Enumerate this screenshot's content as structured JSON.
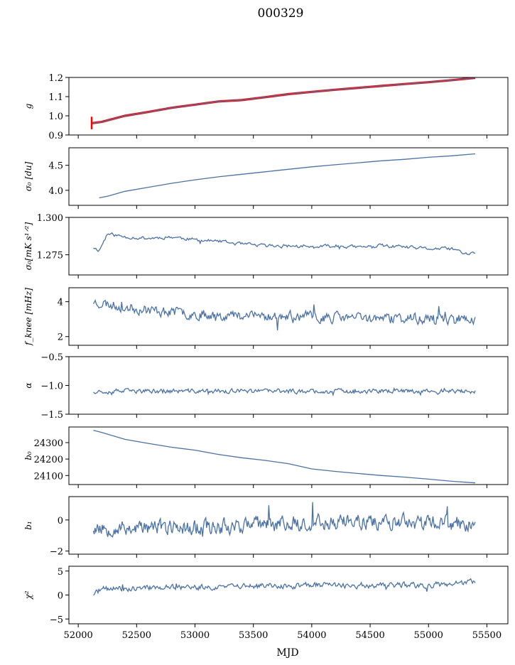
{
  "figure": {
    "title": "000329",
    "xlabel": "MJD",
    "xticks": [
      52000,
      52500,
      53000,
      53500,
      54000,
      54500,
      55000,
      55500
    ],
    "xlim": [
      51920,
      55680
    ]
  },
  "colors": {
    "line": "#4c72a4",
    "overlay": "#ff0000",
    "axis": "#000000"
  },
  "chart_data": [
    {
      "type": "line",
      "ylabel": "g",
      "ylim": [
        0.9,
        1.2
      ],
      "yticks": [
        0.9,
        1.0,
        1.1,
        1.2
      ],
      "ytick_labels": [
        "0.9",
        "1.0",
        "1.1",
        "1.2"
      ],
      "series": [
        {
          "x": [
            52120,
            52200,
            52400,
            52600,
            52800,
            53000,
            53200,
            53400,
            53600,
            53800,
            54000,
            54200,
            54400,
            54600,
            54800,
            55000,
            55200,
            55400
          ],
          "values": [
            0.962,
            0.968,
            1.0,
            1.02,
            1.042,
            1.058,
            1.075,
            1.082,
            1.097,
            1.113,
            1.125,
            1.136,
            1.146,
            1.156,
            1.166,
            1.175,
            1.186,
            1.198
          ]
        },
        {
          "x": [
            52120,
            52200,
            52400,
            52600,
            52800,
            53000,
            53200,
            53400,
            53600,
            53800,
            54000,
            54200,
            54400,
            54600,
            54800,
            55000,
            55200,
            55400
          ],
          "values": [
            0.962,
            0.968,
            1.0,
            1.02,
            1.042,
            1.058,
            1.075,
            1.082,
            1.097,
            1.113,
            1.125,
            1.136,
            1.146,
            1.156,
            1.166,
            1.175,
            1.186,
            1.198
          ]
        }
      ],
      "spike": {
        "x": 52115,
        "ymin": 0.93,
        "ymax": 0.995
      }
    },
    {
      "type": "line",
      "ylabel": "σ₀ [du]",
      "ylim": [
        3.7,
        4.85
      ],
      "yticks": [
        4.0,
        4.5
      ],
      "ytick_labels": [
        "4.0",
        "4.5"
      ],
      "series": [
        {
          "x": [
            52180,
            52250,
            52400,
            52600,
            52800,
            53000,
            53200,
            53400,
            53600,
            53800,
            54000,
            54200,
            54400,
            54600,
            54800,
            55000,
            55200,
            55400
          ],
          "values": [
            3.85,
            3.88,
            3.98,
            4.06,
            4.14,
            4.21,
            4.27,
            4.32,
            4.37,
            4.42,
            4.47,
            4.51,
            4.55,
            4.59,
            4.62,
            4.66,
            4.69,
            4.73
          ]
        }
      ]
    },
    {
      "type": "line",
      "ylabel": "σ₀[mK s¹ᐟ²]",
      "ylim": [
        1.2615,
        1.3
      ],
      "yticks": [
        1.275,
        1.3
      ],
      "ytick_labels": [
        "1.275",
        "1.300"
      ],
      "noise": {
        "seed": 11,
        "points": 330,
        "amp": 0.0018
      },
      "series": [
        {
          "x": [
            52130,
            52180,
            52250,
            52400,
            52600,
            52800,
            53000,
            53200,
            53400,
            53600,
            53800,
            54000,
            54200,
            54400,
            54600,
            54800,
            55000,
            55200,
            55350,
            55400
          ],
          "values": [
            1.28,
            1.278,
            1.289,
            1.287,
            1.286,
            1.287,
            1.285,
            1.284,
            1.282,
            1.281,
            1.281,
            1.28,
            1.281,
            1.28,
            1.281,
            1.28,
            1.279,
            1.279,
            1.275,
            1.277
          ]
        }
      ]
    },
    {
      "type": "line",
      "ylabel": "f_knee [mHz]",
      "ylim": [
        1.5,
        4.8
      ],
      "yticks": [
        2,
        4
      ],
      "ytick_labels": [
        "2",
        "4"
      ],
      "noise": {
        "seed": 23,
        "points": 420,
        "amp": 0.45
      },
      "series": [
        {
          "x": [
            52130,
            52300,
            52500,
            52800,
            53000,
            53400,
            53800,
            54200,
            54600,
            55000,
            55400
          ],
          "values": [
            4.0,
            3.8,
            3.6,
            3.4,
            3.3,
            3.2,
            3.15,
            3.1,
            3.05,
            3.0,
            3.0
          ]
        }
      ]
    },
    {
      "type": "line",
      "ylabel": "α",
      "ylim": [
        -1.5,
        -0.5
      ],
      "yticks": [
        -1.5,
        -1.0,
        -0.5
      ],
      "ytick_labels": [
        "−1.5",
        "−1.0",
        "−0.5"
      ],
      "noise": {
        "seed": 37,
        "points": 420,
        "amp": 0.06
      },
      "series": [
        {
          "x": [
            52130,
            55400
          ],
          "values": [
            -1.1,
            -1.1
          ]
        }
      ]
    },
    {
      "type": "line",
      "ylabel": "b₀",
      "ylim": [
        24045,
        24395
      ],
      "yticks": [
        24100,
        24200,
        24300
      ],
      "ytick_labels": [
        "24100",
        "24200",
        "24300"
      ],
      "series": [
        {
          "x": [
            52130,
            52200,
            52400,
            52600,
            52800,
            53000,
            53200,
            53400,
            53600,
            53800,
            54000,
            54200,
            54400,
            54600,
            54800,
            55000,
            55200,
            55400
          ],
          "values": [
            24375,
            24362,
            24320,
            24295,
            24272,
            24254,
            24228,
            24208,
            24192,
            24172,
            24140,
            24125,
            24112,
            24100,
            24090,
            24078,
            24065,
            24055
          ]
        }
      ]
    },
    {
      "type": "line",
      "ylabel": "b₁",
      "ylim": [
        -2.2,
        1.5
      ],
      "yticks": [
        -2,
        0
      ],
      "ytick_labels": [
        "−2",
        "0"
      ],
      "noise": {
        "seed": 53,
        "points": 480,
        "amp": 0.75
      },
      "series": [
        {
          "x": [
            52130,
            52500,
            53000,
            53500,
            54000,
            54500,
            55000,
            55400
          ],
          "values": [
            -0.5,
            -0.5,
            -0.45,
            -0.3,
            -0.15,
            -0.1,
            -0.2,
            -0.3
          ]
        }
      ]
    },
    {
      "type": "line",
      "ylabel": "χ²",
      "ylim": [
        -6,
        6
      ],
      "yticks": [
        -5,
        0,
        5
      ],
      "ytick_labels": [
        "−5",
        "0",
        "5"
      ],
      "noise": {
        "seed": 71,
        "points": 420,
        "amp": 0.9
      },
      "series": [
        {
          "x": [
            52130,
            52200,
            52500,
            53000,
            53500,
            54000,
            54500,
            55000,
            55400
          ],
          "values": [
            0.2,
            1.2,
            1.5,
            1.6,
            1.8,
            2.0,
            2.0,
            2.0,
            2.8
          ]
        }
      ]
    }
  ]
}
